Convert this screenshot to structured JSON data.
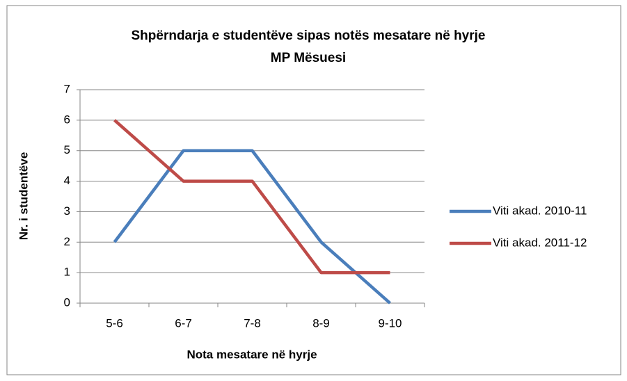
{
  "chart_data": {
    "type": "line",
    "title": "Shpërndarja  e studentëve sipas notës mesatare në hyrje",
    "subtitle": "MP Mësuesi",
    "x_label": "Nota mesatare në hyrje",
    "y_label": "Nr. i studentëve",
    "categories": [
      "5-6",
      "6-7",
      "7-8",
      "8-9",
      "9-10"
    ],
    "series": [
      {
        "name": "Viti akad. 2010-11",
        "color": "#4a7ebb",
        "values": [
          2,
          5,
          5,
          2,
          0
        ]
      },
      {
        "name": "Viti akad. 2011-12",
        "color": "#be4b48",
        "values": [
          6,
          4,
          4,
          1,
          1
        ]
      }
    ],
    "ylim": [
      0,
      7
    ],
    "yticks": [
      0,
      1,
      2,
      3,
      4,
      5,
      6,
      7
    ],
    "grid": true,
    "legend": "right"
  }
}
